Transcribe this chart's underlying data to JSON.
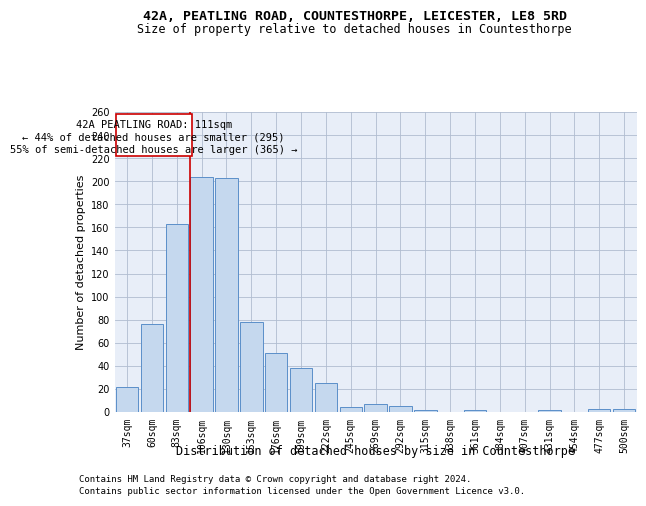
{
  "title": "42A, PEATLING ROAD, COUNTESTHORPE, LEICESTER, LE8 5RD",
  "subtitle": "Size of property relative to detached houses in Countesthorpe",
  "xlabel": "Distribution of detached houses by size in Countesthorpe",
  "ylabel": "Number of detached properties",
  "bar_color": "#c5d8ee",
  "bar_edgecolor": "#5b8fc9",
  "background_color": "#ffffff",
  "plot_bg_color": "#e8eef8",
  "grid_color": "#b0bcd0",
  "categories": [
    "37sqm",
    "60sqm",
    "83sqm",
    "106sqm",
    "130sqm",
    "153sqm",
    "176sqm",
    "199sqm",
    "222sqm",
    "245sqm",
    "269sqm",
    "292sqm",
    "315sqm",
    "338sqm",
    "361sqm",
    "384sqm",
    "407sqm",
    "431sqm",
    "454sqm",
    "477sqm",
    "500sqm"
  ],
  "values": [
    22,
    76,
    163,
    204,
    203,
    78,
    51,
    38,
    25,
    4,
    7,
    5,
    2,
    0,
    2,
    0,
    0,
    2,
    0,
    3,
    3
  ],
  "ylim": [
    0,
    260
  ],
  "yticks": [
    0,
    20,
    40,
    60,
    80,
    100,
    120,
    140,
    160,
    180,
    200,
    220,
    240,
    260
  ],
  "property_line_index": 3,
  "annotation_text_line1": "42A PEATLING ROAD: 111sqm",
  "annotation_text_line2": "← 44% of detached houses are smaller (295)",
  "annotation_text_line3": "55% of semi-detached houses are larger (365) →",
  "annotation_box_color": "#ffffff",
  "annotation_box_edgecolor": "#cc0000",
  "property_line_color": "#cc0000",
  "footer_line1": "Contains HM Land Registry data © Crown copyright and database right 2024.",
  "footer_line2": "Contains public sector information licensed under the Open Government Licence v3.0.",
  "title_fontsize": 9.5,
  "subtitle_fontsize": 8.5,
  "xlabel_fontsize": 8.5,
  "ylabel_fontsize": 8,
  "tick_fontsize": 7,
  "annotation_fontsize": 7.5,
  "footer_fontsize": 6.5
}
